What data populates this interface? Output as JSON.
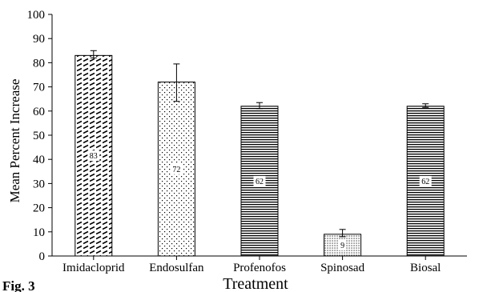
{
  "figure_caption": "Fig. 3",
  "chart_data": {
    "type": "bar",
    "categories": [
      "Imidacloprid",
      "Endosulfan",
      "Profenofos",
      "Spinosad",
      "Biosal"
    ],
    "values": [
      83,
      72,
      62,
      9,
      62
    ],
    "data_labels": [
      "83",
      "72",
      "62",
      "9",
      "62"
    ],
    "error_upper": [
      85,
      79.5,
      63.5,
      11,
      63
    ],
    "error_lower": [
      82,
      64,
      61,
      8,
      61.5
    ],
    "patterns": [
      "diagonal-dash",
      "sparse-dots",
      "horizontal-lines",
      "dense-dots",
      "horizontal-lines"
    ],
    "xlabel": "Treatment",
    "ylabel": "Mean Percent Increase",
    "ylim": [
      0,
      100
    ],
    "yticks": [
      0,
      10,
      20,
      30,
      40,
      50,
      60,
      70,
      80,
      90,
      100
    ],
    "grid": false,
    "legend": "none",
    "colors": {
      "bar_fill": "#ffffff",
      "bar_pattern": "#000000",
      "axis": "#000000"
    }
  }
}
